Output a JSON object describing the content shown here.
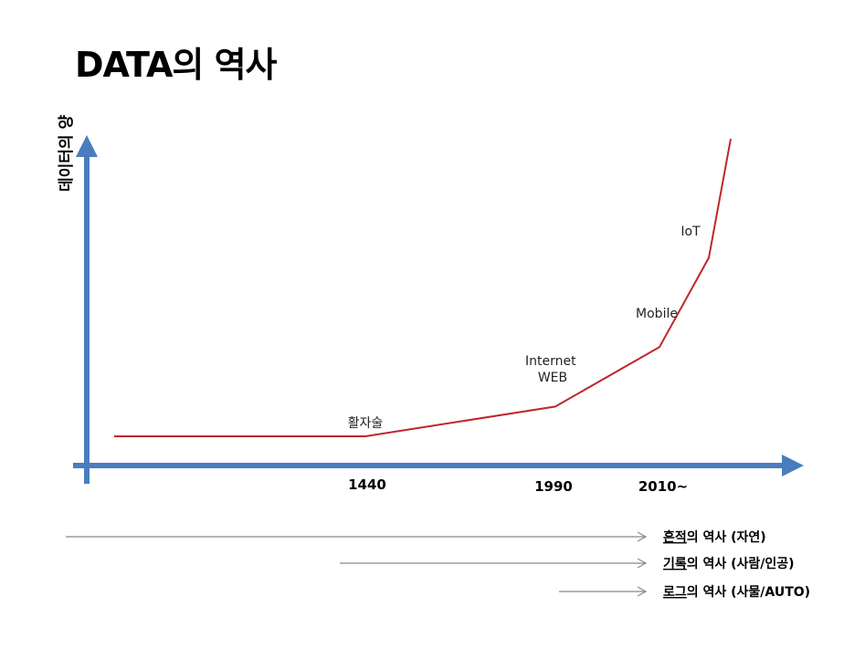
{
  "title": "DATA의 역사",
  "chart_data": {
    "type": "line",
    "ylabel": "데이터의 양",
    "xlabel": "",
    "x_ticks": [
      "1440",
      "1990",
      "2010~"
    ],
    "series": [
      {
        "color": "#c0262b",
        "points": [
          {
            "x": "start",
            "y": 0
          },
          {
            "x": "1440",
            "y": 0
          },
          {
            "x": "1990",
            "y": 1
          },
          {
            "x": "2010",
            "y": 3
          },
          {
            "x": "2015",
            "y": 6
          },
          {
            "x": "end",
            "y": 10
          }
        ]
      }
    ],
    "annotations": [
      {
        "at": "1440",
        "text": "활자술"
      },
      {
        "at": "1990",
        "text": "Internet\nWEB"
      },
      {
        "at": "2010",
        "text": "Mobile"
      },
      {
        "at": "2015",
        "text": "IoT"
      }
    ],
    "axis_color": "#4a7dbf",
    "grid": false
  },
  "eras": [
    {
      "underlined": "흔적",
      "rest": "의 역사 (자연)"
    },
    {
      "underlined": "기록",
      "rest": "의 역사 (사람/인공)"
    },
    {
      "underlined": "로그",
      "rest": "의 역사 (사물/AUTO)"
    }
  ]
}
